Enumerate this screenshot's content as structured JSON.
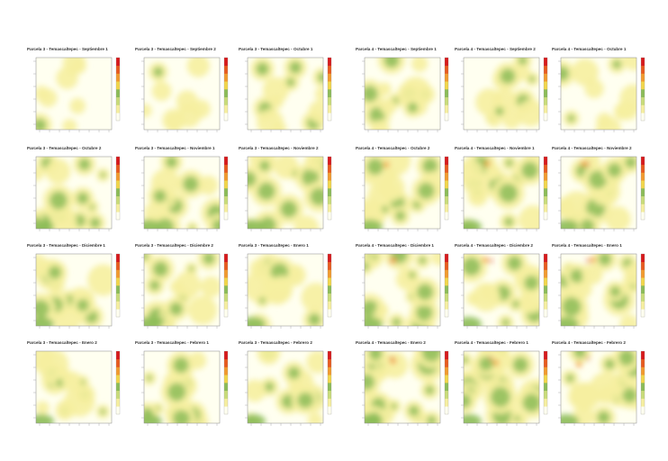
{
  "chart_data": [
    {
      "type": "heatmap",
      "plot": "Parcela 3",
      "title": "Parcela 3 - Temascaltepec - Septiembre 1",
      "density": 0.15
    },
    {
      "type": "heatmap",
      "plot": "Parcela 3",
      "title": "Parcela 3 - Temascaltepec - Septiembre 2",
      "density": 0.18
    },
    {
      "type": "heatmap",
      "plot": "Parcela 3",
      "title": "Parcela 3 - Temascaltepec - Octubre 1",
      "density": 0.45
    },
    {
      "type": "heatmap",
      "plot": "Parcela 4",
      "title": "Parcela 4 - Temascaltepec - Septiembre 1",
      "density": 0.5
    },
    {
      "type": "heatmap",
      "plot": "Parcela 4",
      "title": "Parcela 4 - Temascaltepec - Septiembre 2",
      "density": 0.5
    },
    {
      "type": "heatmap",
      "plot": "Parcela 4",
      "title": "Parcela 4 - Temascaltepec - Octubre 1",
      "density": 0.45
    },
    {
      "type": "heatmap",
      "plot": "Parcela 3",
      "title": "Parcela 3 - Temascaltepec - Octubre 2",
      "density": 0.55
    },
    {
      "type": "heatmap",
      "plot": "Parcela 3",
      "title": "Parcela 3 - Temascaltepec - Noviembre 1",
      "density": 0.55
    },
    {
      "type": "heatmap",
      "plot": "Parcela 3",
      "title": "Parcela 3 - Temascaltepec - Noviembre 2",
      "density": 0.55
    },
    {
      "type": "heatmap",
      "plot": "Parcela 4",
      "title": "Parcela 4 - Temascaltepec - Octubre 2",
      "density": 0.65
    },
    {
      "type": "heatmap",
      "plot": "Parcela 4",
      "title": "Parcela 4 - Temascaltepec - Noviembre 1",
      "density": 0.65
    },
    {
      "type": "heatmap",
      "plot": "Parcela 4",
      "title": "Parcela 4 - Temascaltepec - Noviembre 2",
      "density": 0.7
    },
    {
      "type": "heatmap",
      "plot": "Parcela 3",
      "title": "Parcela 3 - Temascaltepec - Diciembre 1",
      "density": 0.6
    },
    {
      "type": "heatmap",
      "plot": "Parcela 3",
      "title": "Parcela 3 - Temascaltepec - Diciembre 2",
      "density": 0.6
    },
    {
      "type": "heatmap",
      "plot": "Parcela 3",
      "title": "Parcela 3 - Temascaltepec - Enero 1",
      "density": 0.6
    },
    {
      "type": "heatmap",
      "plot": "Parcela 4",
      "title": "Parcela 4 - Temascaltepec - Diciembre 1",
      "density": 0.7
    },
    {
      "type": "heatmap",
      "plot": "Parcela 4",
      "title": "Parcela 4 - Temascaltepec - Diciembre 2",
      "density": 0.7
    },
    {
      "type": "heatmap",
      "plot": "Parcela 4",
      "title": "Parcela 4 - Temascaltepec - Enero 1",
      "density": 0.7
    },
    {
      "type": "heatmap",
      "plot": "Parcela 3",
      "title": "Parcela 3 - Temascaltepec - Enero 2",
      "density": 0.6
    },
    {
      "type": "heatmap",
      "plot": "Parcela 3",
      "title": "Parcela 3 - Temascaltepec - Febrero 1",
      "density": 0.6
    },
    {
      "type": "heatmap",
      "plot": "Parcela 3",
      "title": "Parcela 3 - Temascaltepec - Febrero 2",
      "density": 0.6
    },
    {
      "type": "heatmap",
      "plot": "Parcela 4",
      "title": "Parcela 4 - Temascaltepec - Enero 2",
      "density": 0.75
    },
    {
      "type": "heatmap",
      "plot": "Parcela 4",
      "title": "Parcela 4 - Temascaltepec - Febrero 1",
      "density": 0.75
    },
    {
      "type": "heatmap",
      "plot": "Parcela 4",
      "title": "Parcela 4 - Temascaltepec - Febrero 2",
      "density": 0.75
    }
  ],
  "colors": {
    "background": "#fffff0",
    "pale_yellow": "#f6efa0",
    "green": "#8cbc58",
    "orange": "#f29a2e",
    "red": "#d7191c",
    "frame": "#888888"
  },
  "colorscale": [
    "#fffff0",
    "#f6efa0",
    "#c9dc7a",
    "#8cbc58",
    "#f2d64b",
    "#f29a2e",
    "#e85a1f",
    "#d7191c"
  ]
}
